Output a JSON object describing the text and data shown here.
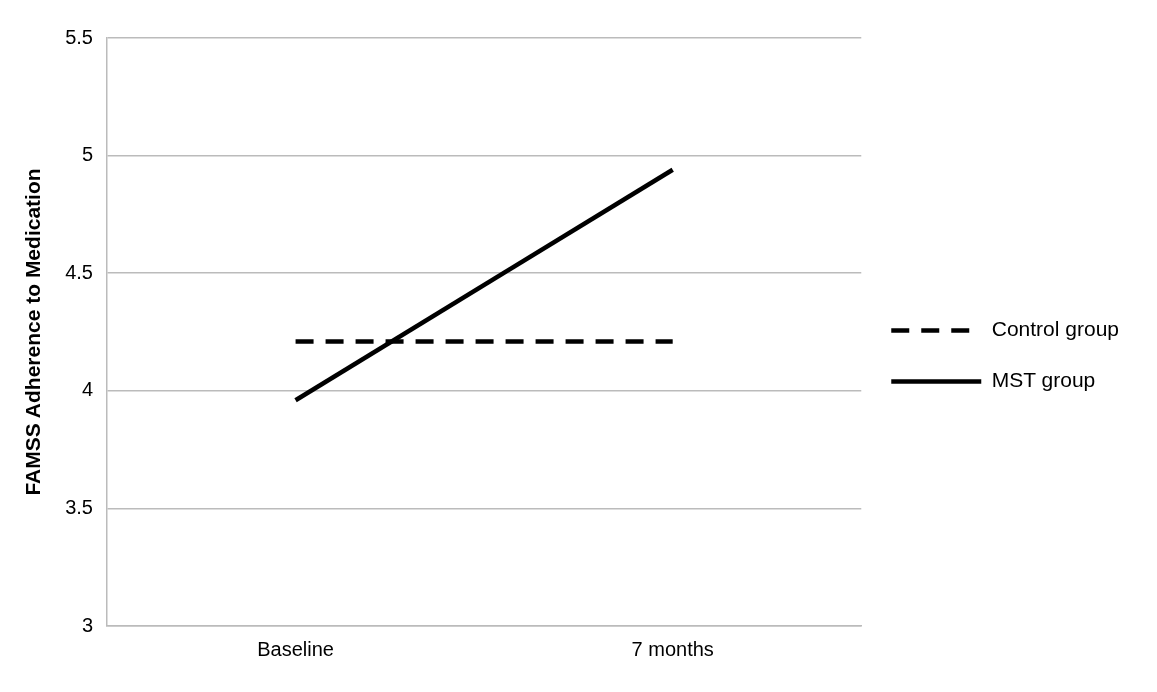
{
  "chart_data": {
    "type": "line",
    "ylabel": "FAMSS Adherence to Medication",
    "categories": [
      "Baseline",
      "7 months"
    ],
    "series": [
      {
        "name": "Control group",
        "color": "#000000",
        "values": [
          4.21,
          4.21
        ],
        "line_style": "dashed"
      },
      {
        "name": "MST group",
        "color": "#000000",
        "values": [
          3.96,
          4.94
        ],
        "line_style": "solid"
      }
    ],
    "ylim": [
      3,
      5.5
    ],
    "yticks": [
      3,
      3.5,
      4,
      4.5,
      5,
      5.5
    ],
    "grid": "y",
    "legend": "right",
    "marker": "none"
  }
}
